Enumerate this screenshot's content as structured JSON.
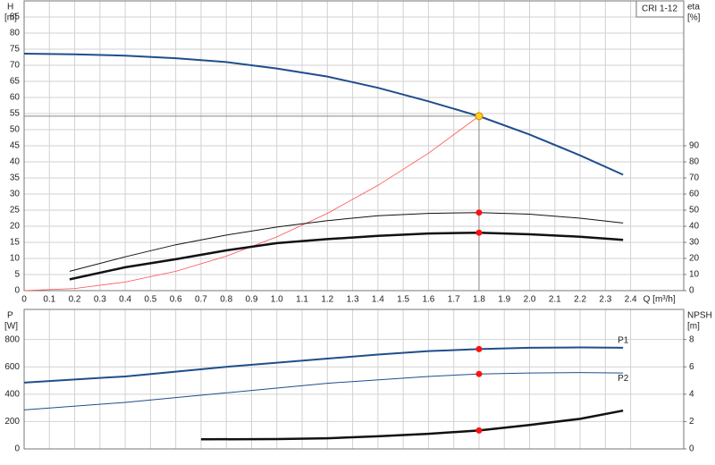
{
  "chart_data": [
    {
      "type": "line",
      "ylabel": "H",
      "yunit": "[m]",
      "y2label": "eta",
      "y2unit": "[%]",
      "xlabel": "Q [m³/h]",
      "annotation": "CRI 1-12",
      "xlim": [
        0,
        2.61
      ],
      "xticks": [
        0,
        0.1,
        0.2,
        0.3,
        0.4,
        0.5,
        0.6,
        0.7,
        0.8,
        0.9,
        {
          "value": 1,
          "label": "1.0"
        },
        1.1,
        1.2,
        1.3,
        1.4,
        1.5,
        1.6,
        1.7,
        1.8,
        1.9,
        {
          "value": 2,
          "label": "2.0"
        },
        2.1,
        2.2,
        2.3,
        2.4
      ],
      "ylim": [
        0,
        90
      ],
      "yticks": [
        0,
        5,
        10,
        15,
        20,
        25,
        30,
        35,
        40,
        45,
        50,
        55,
        60,
        65,
        70,
        75,
        80,
        85
      ],
      "y2lim": [
        0,
        180
      ],
      "y2ticks": [
        0,
        10,
        20,
        30,
        40,
        50,
        60,
        70,
        80,
        90
      ],
      "grid": true,
      "duty_point": {
        "q": 1.8,
        "h": 54.2,
        "color": "#ffd21f"
      },
      "series": [
        {
          "color": "#1f4e8c",
          "line_width": 2,
          "x": [
            0,
            0.2,
            0.4,
            0.6,
            0.8,
            1.0,
            1.2,
            1.4,
            1.6,
            1.8,
            2.0,
            2.2,
            2.37
          ],
          "values": [
            73.6,
            73.4,
            73,
            72.2,
            71,
            69,
            66.5,
            63,
            58.8,
            54.2,
            48.5,
            42,
            36
          ]
        },
        {
          "color": "#ff5050",
          "line_width": 0.8,
          "x": [
            0,
            0.2,
            0.4,
            0.6,
            0.8,
            1.0,
            1.2,
            1.4,
            1.6,
            1.8
          ],
          "values": [
            0,
            0.67,
            2.67,
            6,
            10.7,
            16.7,
            24,
            32.7,
            42.7,
            54.2
          ]
        },
        {
          "color": "#111111",
          "line_width": 1,
          "axis": "y2",
          "duty_marker": true,
          "x": [
            0.18,
            0.4,
            0.6,
            0.8,
            1.0,
            1.2,
            1.4,
            1.6,
            1.8,
            2.0,
            2.2,
            2.37
          ],
          "values": [
            12,
            21,
            28.5,
            34.5,
            39.5,
            43.5,
            46.5,
            48,
            48.5,
            47.5,
            45,
            42
          ]
        },
        {
          "color": "#111111",
          "line_width": 2.5,
          "axis": "y2",
          "duty_marker": true,
          "x": [
            0.18,
            0.4,
            0.6,
            0.8,
            1.0,
            1.2,
            1.4,
            1.6,
            1.8,
            2.0,
            2.2,
            2.37
          ],
          "values": [
            7,
            14.5,
            19.5,
            25,
            29.5,
            32,
            34,
            35.5,
            36,
            35,
            33.5,
            31.5
          ]
        }
      ]
    },
    {
      "type": "line",
      "ylabel": "P",
      "yunit": "[W]",
      "y2label": "NPSH",
      "y2unit": "[m]",
      "xlim": [
        0,
        2.61
      ],
      "xticks": [
        0,
        0.1,
        0.2,
        0.3,
        0.4,
        0.5,
        0.6,
        0.7,
        0.8,
        0.9,
        1,
        1.1,
        1.2,
        1.3,
        1.4,
        1.5,
        1.6,
        1.7,
        1.8,
        1.9,
        2,
        2.1,
        2.2,
        2.3,
        2.4
      ],
      "xtick_labels": false,
      "ylim": [
        0,
        1020
      ],
      "yticks": [
        0,
        200,
        400,
        600,
        800
      ],
      "y2lim": [
        0,
        10.2
      ],
      "y2ticks": [
        0,
        2,
        4,
        6,
        8
      ],
      "grid": true,
      "series": [
        {
          "name": "P1",
          "color": "#1f4e8c",
          "line_width": 2,
          "duty_marker": true,
          "x": [
            0,
            0.4,
            0.8,
            1.0,
            1.2,
            1.4,
            1.6,
            1.8,
            2.0,
            2.2,
            2.37
          ],
          "values": [
            485,
            530,
            600,
            630,
            660,
            690,
            715,
            730,
            740,
            742,
            740
          ]
        },
        {
          "name": "P2",
          "color": "#1f4e8c",
          "line_width": 1,
          "duty_marker": true,
          "x": [
            0,
            0.4,
            0.8,
            1.2,
            1.6,
            1.8,
            2.0,
            2.2,
            2.37
          ],
          "values": [
            285,
            340,
            410,
            480,
            530,
            548,
            555,
            558,
            555
          ]
        },
        {
          "color": "#111111",
          "line_width": 2.5,
          "axis": "y2",
          "duty_marker": true,
          "x": [
            0.7,
            1.0,
            1.2,
            1.4,
            1.6,
            1.8,
            2.0,
            2.2,
            2.37
          ],
          "values": [
            0.7,
            0.72,
            0.78,
            0.92,
            1.1,
            1.35,
            1.75,
            2.2,
            2.8
          ]
        }
      ]
    }
  ]
}
